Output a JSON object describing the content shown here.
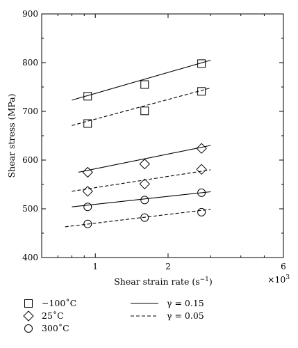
{
  "chart_data": {
    "type": "scatter",
    "title": "",
    "xlabel": "Shear strain rate (s",
    "xlabel_sup": "−1",
    "xlabel_end": ")",
    "ylabel": "Shear stress (MPa)",
    "x_scale": "log",
    "x_multiplier": "×10",
    "x_multiplier_exp": "3",
    "xlim": [
      0.6,
      6
    ],
    "ylim": [
      400,
      900
    ],
    "x_ticks": [
      1,
      2,
      6
    ],
    "y_ticks": [
      400,
      500,
      600,
      700,
      800,
      900
    ],
    "grid": false,
    "legend_position": "bottom",
    "x": [
      0.93,
      1.6,
      2.75
    ],
    "series": [
      {
        "name": "−100˚C",
        "marker": "square",
        "gamma": "γ = 0.15",
        "style": "solid",
        "values": [
          731,
          755,
          798
        ],
        "fit": {
          "x": [
            0.8,
            3.0
          ],
          "y": [
            723,
            805
          ]
        }
      },
      {
        "name": "−100˚C",
        "marker": "square",
        "gamma": "γ = 0.05",
        "style": "dashed",
        "values": [
          675,
          701,
          741
        ],
        "fit": {
          "x": [
            0.8,
            3.0
          ],
          "y": [
            671,
            748
          ]
        }
      },
      {
        "name": "25˚C",
        "marker": "diamond",
        "gamma": "γ = 0.15",
        "style": "solid",
        "values": [
          575,
          592,
          624
        ],
        "fit": {
          "x": [
            0.85,
            3.0
          ],
          "y": [
            575,
            630
          ]
        }
      },
      {
        "name": "25˚C",
        "marker": "diamond",
        "gamma": "γ = 0.05",
        "style": "dashed",
        "values": [
          536,
          551,
          581
        ],
        "fit": {
          "x": [
            0.8,
            3.0
          ],
          "y": [
            536,
            580
          ]
        }
      },
      {
        "name": "300˚C",
        "marker": "circle",
        "gamma": "γ = 0.15",
        "style": "solid",
        "values": [
          504,
          518,
          533
        ],
        "fit": {
          "x": [
            0.8,
            3.0
          ],
          "y": [
            504,
            535
          ]
        }
      },
      {
        "name": "300˚C",
        "marker": "circle",
        "gamma": "γ = 0.05",
        "style": "dashed",
        "values": [
          469,
          482,
          493
        ],
        "fit": {
          "x": [
            0.75,
            3.0
          ],
          "y": [
            463,
            499
          ]
        }
      }
    ],
    "legend": {
      "markers": [
        {
          "marker": "square",
          "label": "−100˚C"
        },
        {
          "marker": "diamond",
          "label": "25˚C"
        },
        {
          "marker": "circle",
          "label": "300˚C"
        }
      ],
      "lines": [
        {
          "style": "solid",
          "label": "γ = 0.15"
        },
        {
          "style": "dashed",
          "label": "γ = 0.05"
        }
      ]
    }
  }
}
